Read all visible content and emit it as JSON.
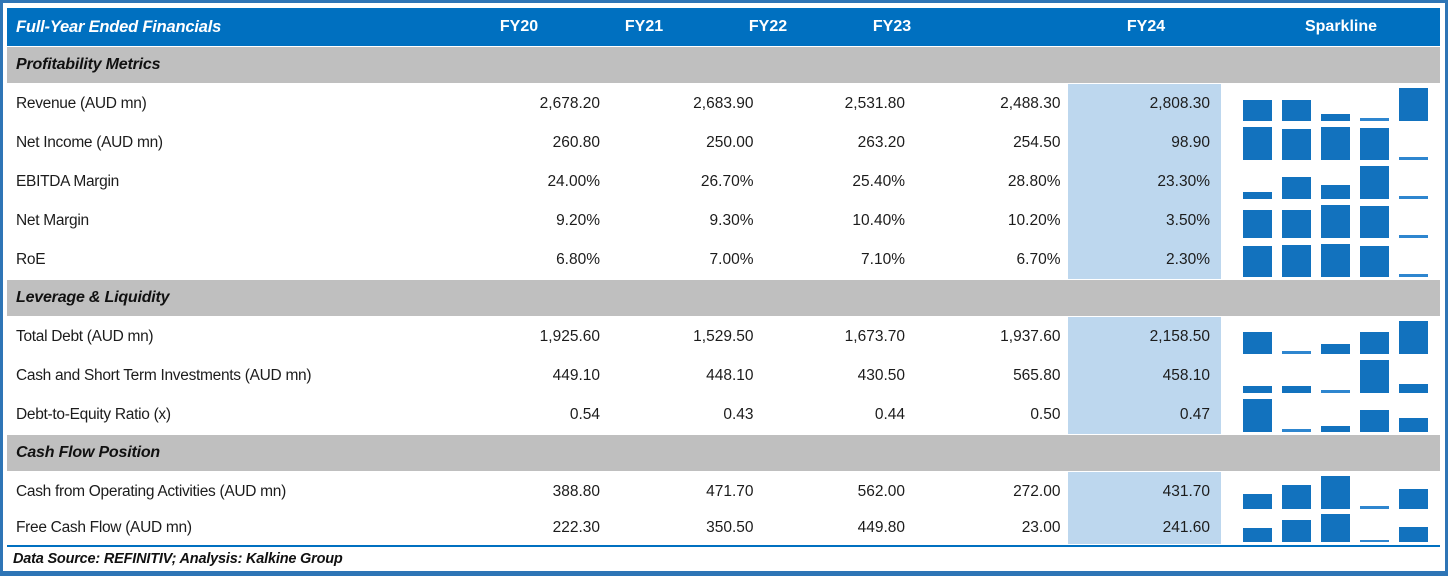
{
  "chart_data": {
    "type": "table",
    "title": "Full-Year Ended Financials",
    "columns": [
      "FY20",
      "FY21",
      "FY22",
      "FY23",
      "FY24"
    ],
    "sparkline_column": "Sparkline",
    "sparkline_type": "column sparkline per row, min-max scaled, minimum value drawn as thin line",
    "highlighted_column": "FY24",
    "sections": [
      {
        "title": "Profitability Metrics",
        "rows": [
          {
            "label": "Revenue (AUD mn)",
            "values": [
              "2,678.20",
              "2,683.90",
              "2,531.80",
              "2,488.30",
              "2,808.30"
            ],
            "numeric": [
              2678.2,
              2683.9,
              2531.8,
              2488.3,
              2808.3
            ]
          },
          {
            "label": "Net Income (AUD mn)",
            "values": [
              "260.80",
              "250.00",
              "263.20",
              "254.50",
              "98.90"
            ],
            "numeric": [
              260.8,
              250.0,
              263.2,
              254.5,
              98.9
            ]
          },
          {
            "label": "EBITDA Margin",
            "values": [
              "24.00%",
              "26.70%",
              "25.40%",
              "28.80%",
              "23.30%"
            ],
            "numeric": [
              24.0,
              26.7,
              25.4,
              28.8,
              23.3
            ]
          },
          {
            "label": "Net Margin",
            "values": [
              "9.20%",
              "9.30%",
              "10.40%",
              "10.20%",
              "3.50%"
            ],
            "numeric": [
              9.2,
              9.3,
              10.4,
              10.2,
              3.5
            ]
          },
          {
            "label": "RoE",
            "values": [
              "6.80%",
              "7.00%",
              "7.10%",
              "6.70%",
              "2.30%"
            ],
            "numeric": [
              6.8,
              7.0,
              7.1,
              6.7,
              2.3
            ]
          }
        ]
      },
      {
        "title": "Leverage & Liquidity",
        "rows": [
          {
            "label": "Total Debt (AUD mn)",
            "values": [
              "1,925.60",
              "1,529.50",
              "1,673.70",
              "1,937.60",
              "2,158.50"
            ],
            "numeric": [
              1925.6,
              1529.5,
              1673.7,
              1937.6,
              2158.5
            ]
          },
          {
            "label": "Cash and Short Term Investments (AUD mn)",
            "values": [
              "449.10",
              "448.10",
              "430.50",
              "565.80",
              "458.10"
            ],
            "numeric": [
              449.1,
              448.1,
              430.5,
              565.8,
              458.1
            ]
          },
          {
            "label": "Debt-to-Equity Ratio (x)",
            "values": [
              "0.54",
              "0.43",
              "0.44",
              "0.50",
              "0.47"
            ],
            "numeric": [
              0.54,
              0.43,
              0.44,
              0.5,
              0.47
            ]
          }
        ]
      },
      {
        "title": "Cash Flow Position",
        "rows": [
          {
            "label": "Cash from Operating Activities (AUD mn)",
            "values": [
              "388.80",
              "471.70",
              "562.00",
              "272.00",
              "431.70"
            ],
            "numeric": [
              388.8,
              471.7,
              562.0,
              272.0,
              431.7
            ]
          },
          {
            "label": "Free Cash Flow (AUD mn)",
            "values": [
              "222.30",
              "350.50",
              "449.80",
              "23.00",
              "241.60"
            ],
            "numeric": [
              222.3,
              350.5,
              449.8,
              23.0,
              241.6
            ]
          }
        ]
      }
    ],
    "footer": "Data Source: REFINITIV; Analysis: Kalkine Group"
  },
  "colors": {
    "header_bg": "#0070C0",
    "section_bg": "#BFBFBF",
    "fy24_highlight": "#BDD7EE",
    "spark_bar": "#1272BE",
    "outer_border": "#2E75B6"
  }
}
